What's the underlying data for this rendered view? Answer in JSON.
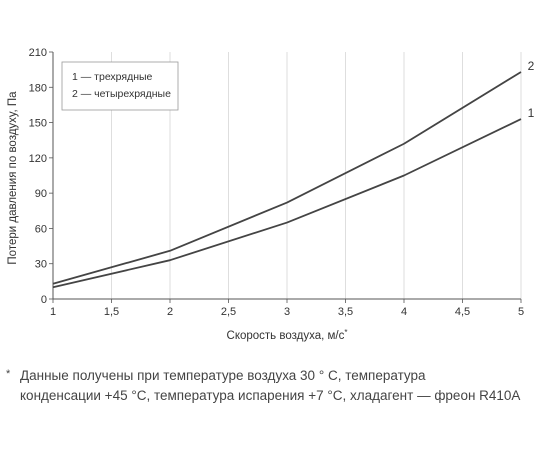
{
  "chart_data": {
    "type": "line",
    "xlabel": "Скорость воздуха, м/с",
    "xlabel_mark": "*",
    "ylabel": "Потери давления по воздуху, Па",
    "xlim": [
      1,
      5
    ],
    "ylim": [
      0,
      210
    ],
    "x_ticks": [
      "1",
      "1,5",
      "2",
      "2,5",
      "3",
      "3,5",
      "4",
      "4,5",
      "5"
    ],
    "y_ticks": [
      "0",
      "30",
      "60",
      "90",
      "120",
      "150",
      "180",
      "210"
    ],
    "grid": "vertical",
    "legend_position": "top-left",
    "legend": [
      "1 — трехрядные",
      "2 — четырехрядные"
    ],
    "series": [
      {
        "label": "1",
        "x": [
          1,
          2,
          3,
          4,
          5
        ],
        "y": [
          10,
          33,
          65,
          105,
          153
        ]
      },
      {
        "label": "2",
        "x": [
          1,
          2,
          3,
          4,
          5
        ],
        "y": [
          13,
          41,
          82,
          132,
          193
        ]
      }
    ],
    "line_color": "#444444"
  },
  "footnote": {
    "mark": "*",
    "line1": "Данные получены при температуре воздуха 30 ° С, температура",
    "line2": "конденсации +45 °С, температура испарения +7 °С, хладагент — фреон R410A"
  }
}
